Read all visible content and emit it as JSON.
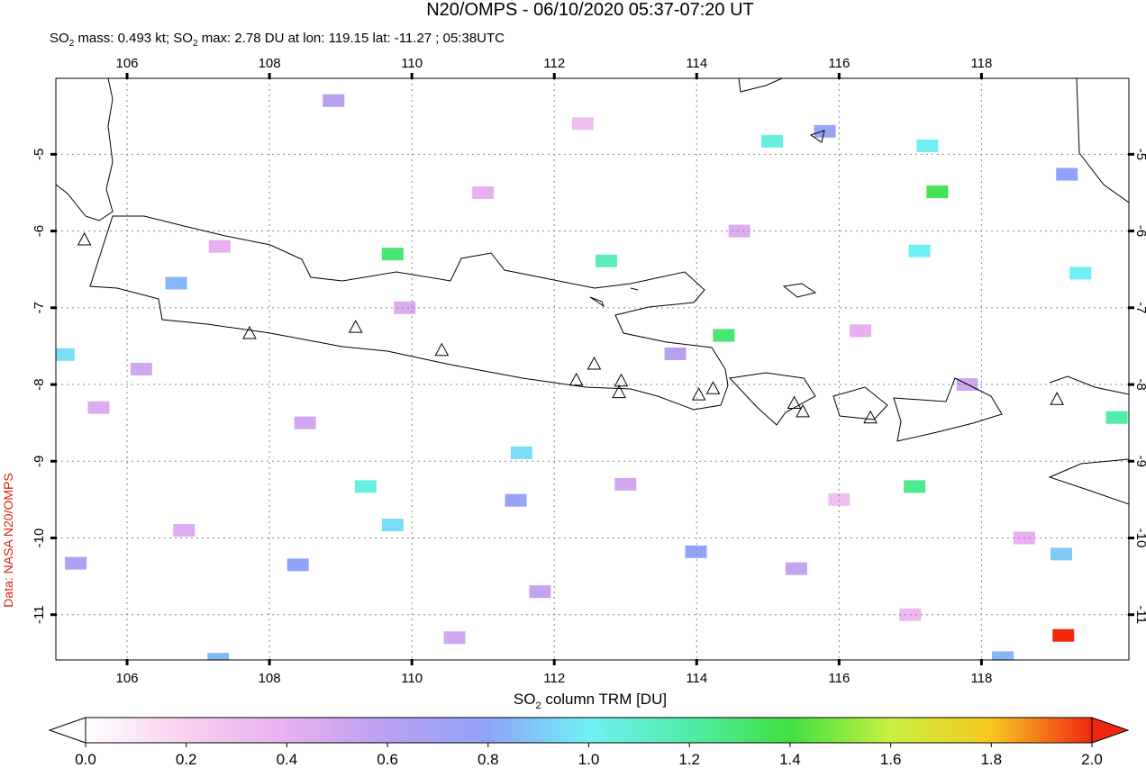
{
  "header": {
    "title": "N20/OMPS - 06/10/2020 05:37-07:20 UT",
    "subtitle_parts": [
      "SO",
      "2",
      " mass: 0.493 kt; SO",
      "2",
      " max: 2.78 DU at lon: 119.15 lat: -11.27 ; 05:38UTC"
    ]
  },
  "side_label": "Data: NASA N20/OMPS",
  "map": {
    "xlim": [
      105,
      120.07
    ],
    "ylim": [
      -4.01,
      -11.59
    ],
    "xticks": [
      106,
      108,
      110,
      112,
      114,
      116,
      118
    ],
    "yticks": [
      -5,
      -6,
      -7,
      -8,
      -9,
      -10,
      -11
    ],
    "grid": true,
    "volcanoes": [
      {
        "lon": 105.4,
        "lat": -6.11
      },
      {
        "lon": 107.72,
        "lat": -7.33
      },
      {
        "lon": 109.21,
        "lat": -7.25
      },
      {
        "lon": 110.42,
        "lat": -7.55
      },
      {
        "lon": 112.31,
        "lat": -7.94
      },
      {
        "lon": 112.56,
        "lat": -7.73
      },
      {
        "lon": 112.91,
        "lat": -8.1
      },
      {
        "lon": 112.94,
        "lat": -7.95
      },
      {
        "lon": 114.03,
        "lat": -8.13
      },
      {
        "lon": 114.23,
        "lat": -8.05
      },
      {
        "lon": 115.37,
        "lat": -8.24
      },
      {
        "lon": 115.49,
        "lat": -8.35
      },
      {
        "lon": 116.44,
        "lat": -8.43
      },
      {
        "lon": 119.06,
        "lat": -8.19
      }
    ],
    "so2_pixels": [
      {
        "lon": 119.15,
        "lat": -11.27,
        "value": 2.78
      },
      {
        "lon": 105.11,
        "lat": -7.61,
        "value": 0.95
      },
      {
        "lon": 109.73,
        "lat": -6.3,
        "value": 1.3
      },
      {
        "lon": 109.35,
        "lat": -9.33,
        "value": 1.05
      },
      {
        "lon": 109.73,
        "lat": -9.83,
        "value": 0.95
      },
      {
        "lon": 111.54,
        "lat": -8.89,
        "value": 0.95
      },
      {
        "lon": 117.38,
        "lat": -5.49,
        "value": 1.35
      },
      {
        "lon": 117.06,
        "lat": -9.33,
        "value": 1.25
      },
      {
        "lon": 114.38,
        "lat": -7.36,
        "value": 1.3
      },
      {
        "lon": 112.73,
        "lat": -6.39,
        "value": 1.15
      },
      {
        "lon": 115.06,
        "lat": -4.83,
        "value": 1.05
      },
      {
        "lon": 117.24,
        "lat": -4.89,
        "value": 1.0
      },
      {
        "lon": 119.12,
        "lat": -10.21,
        "value": 0.9
      },
      {
        "lon": 106.69,
        "lat": -6.68,
        "value": 0.85
      },
      {
        "lon": 108.4,
        "lat": -10.35,
        "value": 0.8
      },
      {
        "lon": 107.28,
        "lat": -11.58,
        "value": 0.85
      },
      {
        "lon": 105.28,
        "lat": -10.33,
        "value": 0.65
      },
      {
        "lon": 115.8,
        "lat": -4.7,
        "value": 0.75
      },
      {
        "lon": 119.2,
        "lat": -5.26,
        "value": 0.8
      },
      {
        "lon": 117.13,
        "lat": -6.26,
        "value": 1.0
      },
      {
        "lon": 119.39,
        "lat": -6.55,
        "value": 1.0
      },
      {
        "lon": 113.99,
        "lat": -10.18,
        "value": 0.8
      },
      {
        "lon": 111.46,
        "lat": -9.51,
        "value": 0.75
      },
      {
        "lon": 118.3,
        "lat": -11.56,
        "value": 0.85
      },
      {
        "lon": 119.9,
        "lat": -8.43,
        "value": 1.2
      },
      {
        "lon": 106.2,
        "lat": -7.8,
        "value": 0.5
      },
      {
        "lon": 107.3,
        "lat": -6.2,
        "value": 0.4
      },
      {
        "lon": 108.5,
        "lat": -8.5,
        "value": 0.5
      },
      {
        "lon": 109.9,
        "lat": -7.0,
        "value": 0.45
      },
      {
        "lon": 111.0,
        "lat": -5.5,
        "value": 0.4
      },
      {
        "lon": 111.8,
        "lat": -10.7,
        "value": 0.55
      },
      {
        "lon": 113.0,
        "lat": -9.3,
        "value": 0.5
      },
      {
        "lon": 114.6,
        "lat": -6.0,
        "value": 0.45
      },
      {
        "lon": 116.3,
        "lat": -7.3,
        "value": 0.4
      },
      {
        "lon": 117.8,
        "lat": -8.0,
        "value": 0.5
      },
      {
        "lon": 118.6,
        "lat": -10.0,
        "value": 0.4
      },
      {
        "lon": 106.8,
        "lat": -9.9,
        "value": 0.45
      },
      {
        "lon": 108.9,
        "lat": -4.3,
        "value": 0.6
      },
      {
        "lon": 112.4,
        "lat": -4.6,
        "value": 0.3
      },
      {
        "lon": 115.4,
        "lat": -10.4,
        "value": 0.55
      },
      {
        "lon": 117.0,
        "lat": -11.0,
        "value": 0.35
      },
      {
        "lon": 110.6,
        "lat": -11.3,
        "value": 0.5
      },
      {
        "lon": 105.6,
        "lat": -8.3,
        "value": 0.45
      },
      {
        "lon": 113.7,
        "lat": -7.6,
        "value": 0.6
      },
      {
        "lon": 116.0,
        "lat": -9.5,
        "value": 0.3
      }
    ]
  },
  "colorbar": {
    "label_parts": [
      "SO",
      "2",
      " column TRM [DU]"
    ],
    "range": [
      0,
      2
    ],
    "ticks": [
      {
        "value": 0,
        "label": "0.0"
      },
      {
        "value": 0.2,
        "label": "0.2"
      },
      {
        "value": 0.4,
        "label": "0.4"
      },
      {
        "value": 0.6,
        "label": "0.6"
      },
      {
        "value": 0.8,
        "label": "0.8"
      },
      {
        "value": 1.0,
        "label": "1.0"
      },
      {
        "value": 1.2,
        "label": "1.2"
      },
      {
        "value": 1.4,
        "label": "1.4"
      },
      {
        "value": 1.6,
        "label": "1.6"
      },
      {
        "value": 1.8,
        "label": "1.8"
      },
      {
        "value": 2.0,
        "label": "2.0"
      }
    ],
    "colors": [
      "#ffffff",
      "#f8d0f0",
      "#e8b0f0",
      "#b8a0f0",
      "#8fa4f8",
      "#70f0f4",
      "#50eca8",
      "#40e040",
      "#c8f040",
      "#f8c820",
      "#f02810"
    ]
  }
}
